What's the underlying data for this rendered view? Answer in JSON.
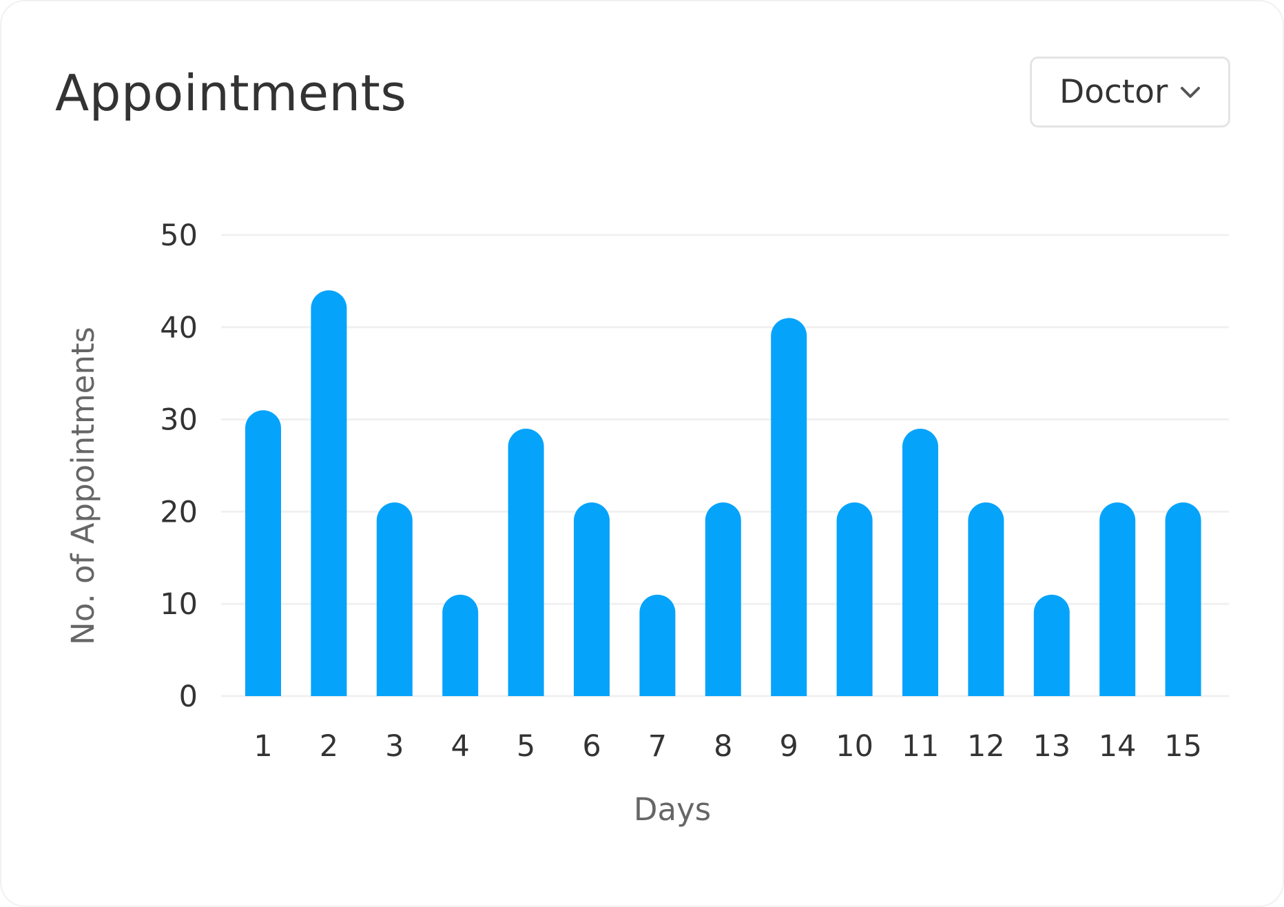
{
  "header": {
    "title": "Appointments"
  },
  "filter": {
    "selected": "Doctor",
    "icon": "chevron-down-icon"
  },
  "colors": {
    "bar": "#06A3FB",
    "grid": "#F0F0F0",
    "text": "#333333",
    "axis_title": "#666666"
  },
  "chart_data": {
    "type": "bar",
    "categories": [
      "1",
      "2",
      "3",
      "4",
      "5",
      "6",
      "7",
      "8",
      "9",
      "10",
      "11",
      "12",
      "13",
      "14",
      "15"
    ],
    "values": [
      31,
      44,
      21,
      11,
      29,
      21,
      11,
      21,
      41,
      21,
      29,
      21,
      11,
      21,
      21
    ],
    "yticks": [
      0,
      10,
      20,
      30,
      40,
      50
    ],
    "ylim": [
      0,
      50
    ],
    "xlabel": "Days",
    "ylabel": "No. of Appointments",
    "grid": true,
    "legend": "none"
  }
}
